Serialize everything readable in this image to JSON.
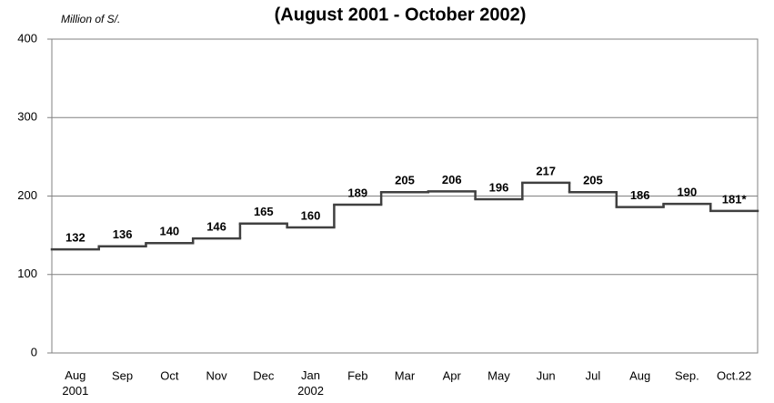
{
  "chart_data": {
    "type": "step",
    "title": "(August 2001 - October 2002)",
    "y_label": "Million of S/.",
    "categories": [
      "Aug\n2001",
      "Sep",
      "Oct",
      "Nov",
      "Dec",
      "Jan\n2002",
      "Feb",
      "Mar",
      "Apr",
      "May",
      "Jun",
      "Jul",
      "Aug",
      "Sep.",
      "Oct.22"
    ],
    "values": [
      132,
      136,
      140,
      146,
      165,
      160,
      189,
      205,
      206,
      196,
      217,
      205,
      186,
      190,
      181
    ],
    "value_labels": [
      "132",
      "136",
      "140",
      "146",
      "165",
      "160",
      "189",
      "205",
      "206",
      "196",
      "217",
      "205",
      "186",
      "190",
      "181*"
    ],
    "color": "#404040",
    "ylim": [
      0,
      400
    ],
    "yticks": [
      0,
      100,
      200,
      300,
      400
    ],
    "grid": true
  }
}
